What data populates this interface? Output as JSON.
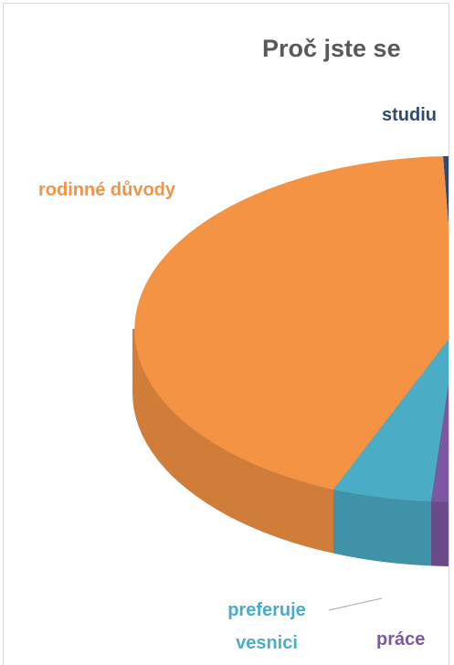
{
  "chart_data": {
    "type": "pie",
    "title": "Proč jste se",
    "categories": [
      "studiu",
      "rodinné důvody",
      "preferuje vesnici",
      "práce"
    ],
    "colors": [
      "#2e4a75",
      "#f39343",
      "#4bacc6",
      "#7e57a2"
    ]
  }
}
